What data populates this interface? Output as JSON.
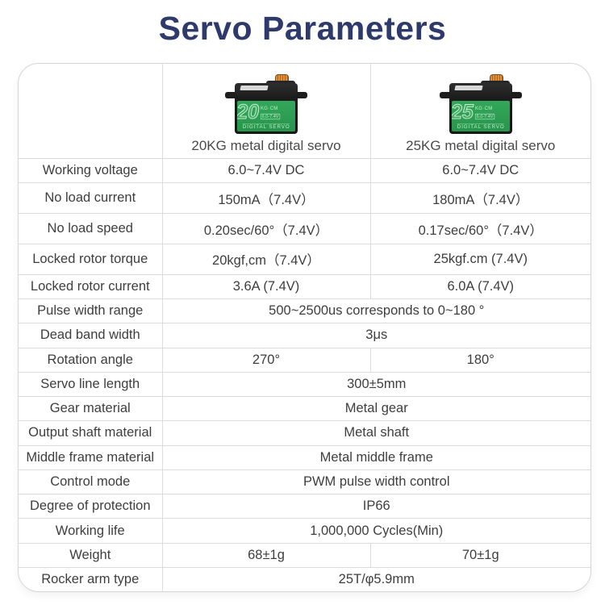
{
  "page": {
    "title": "Servo Parameters"
  },
  "colors": {
    "title_navy": "#2e3a6b",
    "table_border": "#d9d9d9",
    "body_text": "#3e3e3e",
    "servo_green": "#2f9e53",
    "servo_badge_text": "#bdeccb",
    "servo_shaft_orange": "#e09038"
  },
  "products": [
    {
      "badge_number": "20",
      "badge_unit": "KG·CM",
      "badge_voltage": "6.0-7.4V",
      "badge_type": "DIGITAL SERVO",
      "column_header": "20KG metal digital servo"
    },
    {
      "badge_number": "25",
      "badge_unit": "KG·CM",
      "badge_voltage": "6.0-7.4V",
      "badge_type": "DIGITAL SERVO",
      "column_header": "25KG metal digital servo"
    }
  ],
  "table": {
    "rows": [
      {
        "label": "Working voltage",
        "span": false,
        "v1": "6.0~7.4V DC",
        "v2": "6.0~7.4V DC"
      },
      {
        "label": "No load current",
        "span": false,
        "v1": "150mA（7.4V）",
        "v2": "180mA（7.4V）"
      },
      {
        "label": "No load speed",
        "span": false,
        "v1": "0.20sec/60°（7.4V）",
        "v2": "0.17sec/60°（7.4V）"
      },
      {
        "label": "Locked rotor torque",
        "span": false,
        "v1": "20kgf,cm（7.4V）",
        "v2": "25kgf.cm (7.4V)"
      },
      {
        "label": "Locked rotor current",
        "span": false,
        "v1": "3.6A (7.4V)",
        "v2": "6.0A (7.4V)"
      },
      {
        "label": "Pulse width range",
        "span": true,
        "value": "500~2500us corresponds to 0~180 °"
      },
      {
        "label": "Dead band width",
        "span": true,
        "value": "3μs"
      },
      {
        "label": "Rotation angle",
        "span": false,
        "v1": "270°",
        "v2": "180°"
      },
      {
        "label": "Servo line length",
        "span": true,
        "value": "300±5mm"
      },
      {
        "label": "Gear material",
        "span": true,
        "value": "Metal gear"
      },
      {
        "label": "Output shaft material",
        "span": true,
        "value": "Metal shaft"
      },
      {
        "label": "Middle frame material",
        "span": true,
        "value": "Metal middle frame"
      },
      {
        "label": "Control mode",
        "span": true,
        "value": "PWM pulse width control"
      },
      {
        "label": "Degree of protection",
        "span": true,
        "value": "IP66"
      },
      {
        "label": "Working life",
        "span": true,
        "value": "1,000,000 Cycles(Min)"
      },
      {
        "label": "Weight",
        "span": false,
        "v1": "68±1g",
        "v2": "70±1g"
      },
      {
        "label": "Rocker arm type",
        "span": true,
        "value": "25T/φ5.9mm"
      }
    ]
  }
}
